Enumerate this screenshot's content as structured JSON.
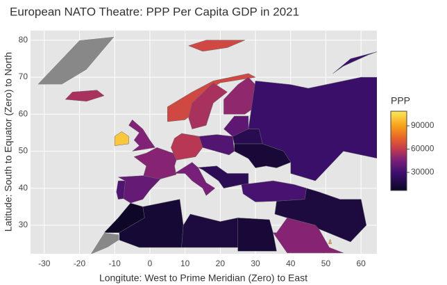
{
  "chart_data": {
    "type": "choropleth",
    "title": "European NATO Theatre: PPP Per Capita GDP in 2021",
    "x_label": "Longitute: West to Prime Meridian (Zero) to East",
    "y_label": "Latitude: South to Equator (Zero) to North",
    "xlim": [
      -33.9,
      64.5
    ],
    "ylim": [
      22.3,
      82.6
    ],
    "xticks": [
      -30,
      -20,
      -10,
      0,
      10,
      20,
      30,
      40,
      50,
      60
    ],
    "yticks": [
      30,
      40,
      50,
      60,
      70,
      80
    ],
    "grid": true,
    "colorbar_title": "PPP",
    "color_range": [
      6700,
      108800
    ],
    "colorbar_ticks": [
      30000,
      60000,
      90000
    ],
    "colorscale": [
      [
        0,
        "#0b0724"
      ],
      [
        0.22,
        "#3d0f6e"
      ],
      [
        0.38,
        "#7a1f7a"
      ],
      [
        0.52,
        "#c13a50"
      ],
      [
        0.66,
        "#e8622a"
      ],
      [
        0.82,
        "#f7a21a"
      ],
      [
        1,
        "#fde95a"
      ]
    ],
    "missing_color": "#888888",
    "regions": [
      {
        "value": null,
        "outline": [
          [
            -32,
            68
          ],
          [
            -20,
            80
          ],
          [
            -10,
            81
          ],
          [
            -18,
            72
          ],
          [
            -25,
            68
          ]
        ]
      },
      {
        "value": 55000,
        "outline": [
          [
            -24,
            64
          ],
          [
            -22,
            66
          ],
          [
            -15,
            66.5
          ],
          [
            -13,
            65
          ],
          [
            -18,
            63.5
          ]
        ]
      },
      {
        "value": 100000,
        "outline": [
          [
            -10,
            51.5
          ],
          [
            -10,
            54
          ],
          [
            -8,
            55.3
          ],
          [
            -6,
            54
          ],
          [
            -6,
            52
          ]
        ]
      },
      {
        "value": 47000,
        "outline": [
          [
            -5,
            50
          ],
          [
            1.5,
            51
          ],
          [
            0,
            53
          ],
          [
            -2,
            56
          ],
          [
            -5,
            58.5
          ],
          [
            -6,
            57
          ],
          [
            -3,
            55
          ],
          [
            -4.5,
            53
          ],
          [
            -3,
            51.5
          ]
        ]
      },
      {
        "value": 65000,
        "outline": [
          [
            5,
            58
          ],
          [
            5,
            62
          ],
          [
            12,
            66
          ],
          [
            18,
            69
          ],
          [
            28,
            71
          ],
          [
            30,
            70
          ],
          [
            20,
            68.5
          ],
          [
            14,
            65
          ],
          [
            12,
            60
          ],
          [
            10,
            58.5
          ]
        ]
      },
      {
        "value": 55000,
        "outline": [
          [
            12,
            56
          ],
          [
            11,
            59
          ],
          [
            12,
            63
          ],
          [
            18,
            68.5
          ],
          [
            22,
            66
          ],
          [
            18,
            63
          ],
          [
            16,
            57
          ]
        ]
      },
      {
        "value": 50000,
        "outline": [
          [
            21,
            60
          ],
          [
            21,
            64
          ],
          [
            25,
            68
          ],
          [
            28,
            70
          ],
          [
            30,
            68
          ],
          [
            30,
            62
          ],
          [
            27,
            60
          ]
        ]
      },
      {
        "value": 28000,
        "outline": [
          [
            28,
            56
          ],
          [
            30,
            69
          ],
          [
            40,
            68
          ],
          [
            45,
            67
          ],
          [
            60,
            70
          ],
          [
            65,
            70
          ],
          [
            65,
            48
          ],
          [
            55,
            50
          ],
          [
            47,
            42
          ],
          [
            40,
            44
          ],
          [
            40,
            47
          ],
          [
            38,
            50
          ],
          [
            32,
            52
          ],
          [
            31,
            56
          ]
        ]
      },
      {
        "value": 48000,
        "outline": [
          [
            -4.5,
            48.5
          ],
          [
            -1,
            49.5
          ],
          [
            2,
            51
          ],
          [
            8,
            49
          ],
          [
            7,
            46
          ],
          [
            7.5,
            43.7
          ],
          [
            3,
            42.5
          ],
          [
            -1.8,
            43.4
          ],
          [
            -1,
            46
          ]
        ]
      },
      {
        "value": 40000,
        "outline": [
          [
            -9,
            43
          ],
          [
            -2,
            43.4
          ],
          [
            3,
            42.5
          ],
          [
            0,
            39.5
          ],
          [
            -2,
            37
          ],
          [
            -5.5,
            36
          ],
          [
            -7.5,
            37.2
          ],
          [
            -7,
            42
          ]
        ]
      },
      {
        "value": 34000,
        "outline": [
          [
            -9.5,
            39
          ],
          [
            -9,
            42
          ],
          [
            -7,
            42
          ],
          [
            -7.5,
            37.2
          ],
          [
            -9,
            37
          ]
        ]
      },
      {
        "value": 58000,
        "outline": [
          [
            6,
            51
          ],
          [
            7,
            53.5
          ],
          [
            9,
            54.8
          ],
          [
            14,
            54
          ],
          [
            15,
            51
          ],
          [
            13,
            48.5
          ],
          [
            7.5,
            47.6
          ]
        ]
      },
      {
        "value": 35000,
        "outline": [
          [
            14,
            54
          ],
          [
            19,
            54.5
          ],
          [
            23.5,
            54
          ],
          [
            24,
            50
          ],
          [
            22.5,
            49
          ],
          [
            15,
            51
          ]
        ]
      },
      {
        "value": 45000,
        "outline": [
          [
            7,
            44
          ],
          [
            12,
            47
          ],
          [
            13.7,
            45.6
          ],
          [
            16,
            41.5
          ],
          [
            18.5,
            40
          ],
          [
            16,
            38
          ],
          [
            15,
            40
          ],
          [
            12,
            42
          ],
          [
            10,
            44
          ]
        ]
      },
      {
        "value": 22000,
        "outline": [
          [
            13.7,
            45.6
          ],
          [
            19,
            46
          ],
          [
            22,
            44
          ],
          [
            28,
            44
          ],
          [
            28,
            41
          ],
          [
            26,
            41
          ],
          [
            21,
            40
          ],
          [
            19.5,
            42
          ],
          [
            15,
            45
          ]
        ]
      },
      {
        "value": 13000,
        "outline": [
          [
            24,
            50
          ],
          [
            24,
            52
          ],
          [
            32,
            52
          ],
          [
            38,
            50
          ],
          [
            40,
            47
          ],
          [
            36,
            45.5
          ],
          [
            33,
            46
          ],
          [
            30,
            45.5
          ],
          [
            28,
            48
          ]
        ]
      },
      {
        "value": 20000,
        "outline": [
          [
            23.5,
            54
          ],
          [
            24,
            52
          ],
          [
            32,
            52
          ],
          [
            31,
            56
          ],
          [
            27,
            56
          ]
        ]
      },
      {
        "value": 38000,
        "outline": [
          [
            21,
            56
          ],
          [
            24,
            59.5
          ],
          [
            28,
            59.5
          ],
          [
            28,
            56
          ],
          [
            23.5,
            54
          ]
        ]
      },
      {
        "value": 32000,
        "outline": [
          [
            26,
            41
          ],
          [
            29,
            41.3
          ],
          [
            35,
            42
          ],
          [
            41,
            41
          ],
          [
            44.5,
            40
          ],
          [
            44,
            37
          ],
          [
            36,
            36.5
          ],
          [
            30,
            36.3
          ],
          [
            26.5,
            38.5
          ]
        ]
      },
      {
        "value": 15000,
        "outline": [
          [
            36,
            36.5
          ],
          [
            44,
            37
          ],
          [
            44.5,
            40
          ],
          [
            48,
            39
          ],
          [
            54,
            37
          ],
          [
            60,
            37
          ],
          [
            61.5,
            30
          ],
          [
            57,
            25.5
          ],
          [
            48,
            29
          ],
          [
            47,
            30
          ],
          [
            39,
            32
          ],
          [
            35.5,
            33
          ]
        ]
      },
      {
        "value": 48000,
        "outline": [
          [
            36,
            28
          ],
          [
            39,
            32
          ],
          [
            47,
            30
          ],
          [
            48,
            29
          ],
          [
            51,
            24
          ],
          [
            55,
            22.5
          ],
          [
            45,
            22.5
          ],
          [
            39,
            22.5
          ],
          [
            35,
            28
          ]
        ]
      },
      {
        "value": 8000,
        "outline": [
          [
            -13,
            28
          ],
          [
            -9,
            32
          ],
          [
            -5.5,
            36
          ],
          [
            -2,
            35
          ],
          [
            -1.5,
            32
          ],
          [
            -8.7,
            28
          ]
        ]
      },
      {
        "value": 12000,
        "outline": [
          [
            -8.7,
            28
          ],
          [
            -1.5,
            32
          ],
          [
            -2,
            35
          ],
          [
            8.5,
            37
          ],
          [
            9.5,
            30
          ],
          [
            9,
            24
          ],
          [
            -3,
            24
          ],
          [
            -8.7,
            26
          ]
        ]
      },
      {
        "value": 15000,
        "outline": [
          [
            9.5,
            30
          ],
          [
            11.5,
            33
          ],
          [
            20,
            31
          ],
          [
            25,
            32
          ],
          [
            25,
            24
          ],
          [
            9,
            24
          ]
        ]
      },
      {
        "value": 13000,
        "outline": [
          [
            25,
            32
          ],
          [
            34,
            31.5
          ],
          [
            35,
            28
          ],
          [
            36,
            23
          ],
          [
            25,
            23
          ]
        ]
      },
      {
        "value": null,
        "outline": [
          [
            -17,
            22
          ],
          [
            -13,
            28
          ],
          [
            -8.7,
            27.5
          ],
          [
            -8.7,
            26
          ],
          [
            -12,
            24
          ]
        ]
      },
      {
        "value": 65000,
        "outline": [
          [
            11,
            78.5
          ],
          [
            16,
            80
          ],
          [
            27,
            80
          ],
          [
            22,
            78
          ],
          [
            15,
            77
          ]
        ]
      },
      {
        "value": 28000,
        "outline": [
          [
            52,
            71
          ],
          [
            57,
            75
          ],
          [
            65,
            77
          ],
          [
            62,
            76
          ],
          [
            55,
            73
          ]
        ]
      },
      {
        "value": 95000,
        "outline": [
          [
            50.8,
            25
          ],
          [
            51.2,
            26.2
          ],
          [
            51.6,
            25
          ]
        ]
      }
    ]
  }
}
